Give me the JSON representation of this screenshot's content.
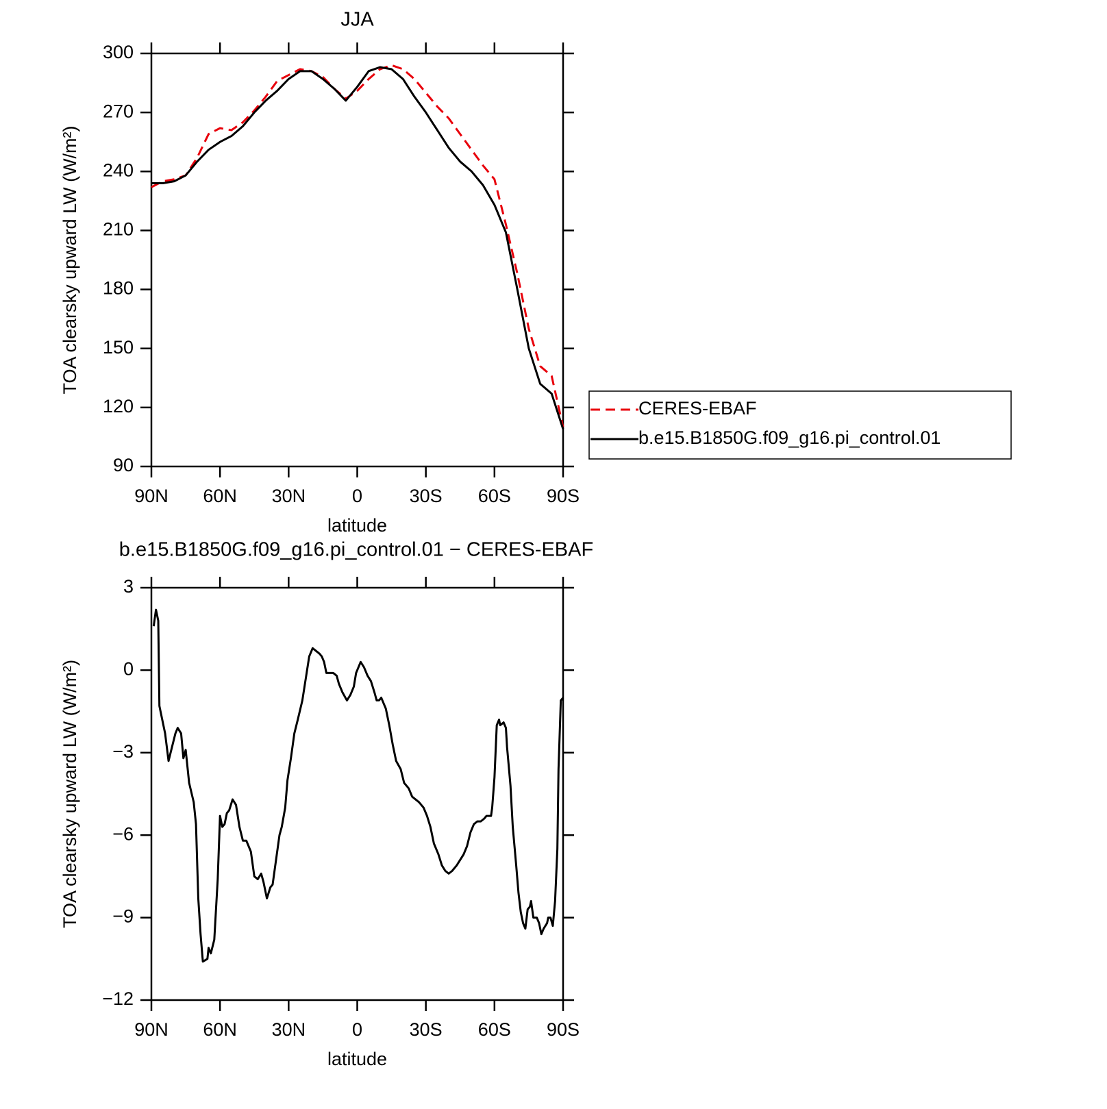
{
  "chart_data": [
    {
      "type": "line",
      "title": "JJA",
      "xlabel": "latitude",
      "ylabel": "TOA clearsky upward LW (W/m²)",
      "x": [
        90,
        85,
        80,
        75,
        70,
        65,
        60,
        55,
        50,
        45,
        40,
        35,
        30,
        25,
        20,
        15,
        10,
        5,
        0,
        -5,
        -10,
        -15,
        -20,
        -25,
        -30,
        -35,
        -40,
        -45,
        -50,
        -55,
        -60,
        -65,
        -70,
        -75,
        -80,
        -85,
        -90
      ],
      "xlim": [
        90,
        -90
      ],
      "xticks": [
        {
          "value": 90,
          "label": "90N"
        },
        {
          "value": 60,
          "label": "60N"
        },
        {
          "value": 30,
          "label": "30N"
        },
        0,
        {
          "value": -30,
          "label": "30S"
        },
        {
          "value": -60,
          "label": "60S"
        },
        {
          "value": -90,
          "label": "90S"
        }
      ],
      "ylim": [
        90,
        300
      ],
      "yticks": [
        90,
        120,
        150,
        180,
        210,
        240,
        270,
        300
      ],
      "legend": "outside-right",
      "series": [
        {
          "name": "CERES-EBAF",
          "color": "#e8000b",
          "line_style": "dashed",
          "values": [
            232,
            235,
            236,
            238,
            247,
            259,
            262,
            261,
            265,
            271,
            278,
            286,
            289,
            292,
            291,
            288,
            282,
            277,
            281,
            287,
            292,
            294,
            292,
            287,
            280,
            273,
            267,
            259,
            251,
            243,
            236,
            213,
            188,
            160,
            141,
            136,
            110
          ]
        },
        {
          "name": "b.e15.B1850G.f09_g16.pi_control.01",
          "color": "#000000",
          "line_style": "solid",
          "values": [
            234,
            234,
            235,
            238,
            245,
            251,
            255,
            258,
            263,
            270,
            276,
            281,
            287,
            291,
            291,
            287,
            282,
            276,
            283,
            291,
            293,
            292,
            287,
            278,
            270,
            261,
            252,
            245,
            240,
            233,
            223,
            209,
            180,
            150,
            132,
            127,
            109
          ]
        }
      ]
    },
    {
      "type": "line",
      "title": "b.e15.B1850G.f09_g16.pi_control.01 − CERES-EBAF",
      "xlabel": "latitude",
      "ylabel": "TOA clearsky upward LW (W/m²)",
      "x": [
        89,
        88,
        87,
        86.5,
        85,
        84,
        82.5,
        81,
        79.5,
        78.5,
        77,
        76,
        75,
        73.5,
        71.5,
        70.5,
        69.5,
        68.5,
        67.5,
        65.5,
        65,
        64,
        62.5,
        61,
        60,
        59,
        58,
        57,
        56,
        54.5,
        53,
        51.5,
        50,
        48.5,
        46.5,
        45,
        43.5,
        42,
        41,
        39.5,
        38,
        37,
        35.5,
        34,
        33,
        31.5,
        30.5,
        29,
        27.5,
        26,
        24,
        22.5,
        21,
        19.5,
        18,
        16.5,
        15.5,
        14.5,
        13.5,
        10.5,
        9,
        8,
        6.5,
        4.5,
        3,
        1.5,
        0.5,
        -1.5,
        -3,
        -4.5,
        -6,
        -7.5,
        -8.5,
        -9.5,
        -10.5,
        -12.5,
        -14,
        -15.5,
        -17,
        -19,
        -20.5,
        -22.5,
        -24,
        -25.5,
        -27,
        -29,
        -30.5,
        -32,
        -33.5,
        -35.5,
        -37,
        -38.5,
        -40,
        -41.5,
        -43.5,
        -45,
        -46.5,
        -48,
        -49.5,
        -51,
        -52.5,
        -54,
        -55.5,
        -56.5,
        -58.5,
        -59,
        -60,
        -61,
        -62,
        -62.5,
        -64,
        -65,
        -65.5,
        -67,
        -68,
        -69.5,
        -70.5,
        -71.5,
        -72.5,
        -73.5,
        -74.5,
        -75.5,
        -76,
        -77,
        -78.5,
        -79.5,
        -80.5,
        -81.5,
        -83,
        -83.5,
        -84.5,
        -85.5,
        -86.5,
        -87.5,
        -88,
        -89,
        -90
      ],
      "values": [
        1.6,
        2.2,
        1.8,
        -1.3,
        -1.9,
        -2.3,
        -3.3,
        -2.8,
        -2.3,
        -2.1,
        -2.3,
        -3.2,
        -2.9,
        -4.1,
        -4.8,
        -5.6,
        -8.3,
        -9.6,
        -10.6,
        -10.5,
        -10.1,
        -10.3,
        -9.8,
        -7.6,
        -5.3,
        -5.7,
        -5.6,
        -5.2,
        -5.1,
        -4.7,
        -4.9,
        -5.7,
        -6.2,
        -6.2,
        -6.6,
        -7.5,
        -7.6,
        -7.4,
        -7.7,
        -8.3,
        -7.9,
        -7.8,
        -6.9,
        -6.0,
        -5.7,
        -5.0,
        -4.0,
        -3.2,
        -2.3,
        -1.8,
        -1.1,
        -0.3,
        0.5,
        0.8,
        0.7,
        0.6,
        0.5,
        0.3,
        -0.1,
        -0.1,
        -0.2,
        -0.5,
        -0.8,
        -1.1,
        -0.9,
        -0.6,
        -0.1,
        0.3,
        0.1,
        -0.2,
        -0.4,
        -0.8,
        -1.1,
        -1.1,
        -1.0,
        -1.4,
        -2.0,
        -2.7,
        -3.3,
        -3.6,
        -4.1,
        -4.3,
        -4.6,
        -4.7,
        -4.8,
        -5.0,
        -5.3,
        -5.7,
        -6.3,
        -6.7,
        -7.1,
        -7.3,
        -7.4,
        -7.3,
        -7.1,
        -6.9,
        -6.7,
        -6.4,
        -5.9,
        -5.6,
        -5.5,
        -5.5,
        -5.4,
        -5.3,
        -5.3,
        -5.0,
        -3.9,
        -2.0,
        -1.8,
        -2.0,
        -1.9,
        -2.1,
        -2.8,
        -4.2,
        -5.7,
        -7.1,
        -8.1,
        -8.8,
        -9.2,
        -9.4,
        -8.7,
        -8.6,
        -8.4,
        -9.0,
        -9.0,
        -9.2,
        -9.6,
        -9.4,
        -9.2,
        -9.0,
        -9.0,
        -9.3,
        -8.4,
        -6.5,
        -3.6,
        -1.1,
        -1.0
      ],
      "color": "#000000",
      "xlim": [
        90,
        -90
      ],
      "xticks": [
        {
          "value": 90,
          "label": "90N"
        },
        {
          "value": 60,
          "label": "60N"
        },
        {
          "value": 30,
          "label": "30N"
        },
        0,
        {
          "value": -30,
          "label": "30S"
        },
        {
          "value": -60,
          "label": "60S"
        },
        {
          "value": -90,
          "label": "90S"
        }
      ],
      "ylim": [
        -12,
        3
      ],
      "yticks": [
        {
          "value": -12,
          "label": "−12"
        },
        {
          "value": -9,
          "label": "−9"
        },
        {
          "value": -6,
          "label": "−6"
        },
        {
          "value": -3,
          "label": "−3"
        },
        0,
        3
      ]
    }
  ]
}
